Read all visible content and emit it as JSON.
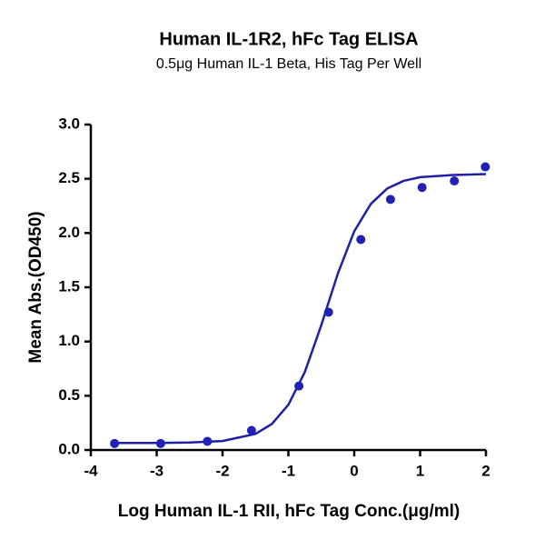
{
  "chart_data": {
    "type": "scatter",
    "title": "Human IL-1R2, hFc Tag ELISA",
    "subtitle": "0.5μg Human IL-1 Beta, His Tag Per Well",
    "x_label": "Log Human IL-1 RII, hFc Tag Conc.(μg/ml)",
    "y_label": "Mean Abs.(OD450)",
    "xlim": [
      -4,
      2
    ],
    "xticks": [
      -4,
      -3,
      -2,
      -1,
      0,
      1,
      2
    ],
    "ylim": [
      0,
      3
    ],
    "yticks": [
      {
        "value": 0,
        "label": "0.0"
      },
      {
        "value": 0.5,
        "label": "0.5"
      },
      {
        "value": 1,
        "label": "1.0"
      },
      {
        "value": 1.5,
        "label": "1.5"
      },
      {
        "value": 2,
        "label": "2.0"
      },
      {
        "value": 2.5,
        "label": "2.5"
      },
      {
        "value": 3,
        "label": "3.0"
      }
    ],
    "series": [
      {
        "type": "scatter",
        "color": "#2121b5",
        "x": [
          -3.64,
          -2.94,
          -2.23,
          -1.56,
          -0.84,
          -0.39,
          0.1,
          0.55,
          1.03,
          1.52,
          1.99
        ],
        "values": [
          0.06,
          0.06,
          0.08,
          0.18,
          0.59,
          1.27,
          1.94,
          2.31,
          2.42,
          2.48,
          2.61
        ]
      },
      {
        "type": "line",
        "color": "#1f1fa8",
        "x": [
          -3.7,
          -3,
          -2.5,
          -2,
          -1.5,
          -1.25,
          -1,
          -0.75,
          -0.5,
          -0.25,
          0,
          0.25,
          0.5,
          0.75,
          1,
          1.5,
          2
        ],
        "values": [
          0.065,
          0.065,
          0.069,
          0.083,
          0.148,
          0.24,
          0.417,
          0.719,
          1.152,
          1.625,
          2.016,
          2.267,
          2.41,
          2.481,
          2.515,
          2.535,
          2.543
        ]
      }
    ]
  }
}
